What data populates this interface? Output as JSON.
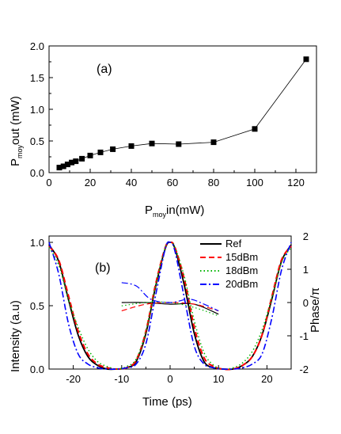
{
  "chart_data": [
    {
      "panel_label": "(a)",
      "type": "line",
      "xlabel": {
        "base": "P",
        "sub": "moy",
        "rest": "in(mW)"
      },
      "ylabel": {
        "base": "P",
        "sub": "moy",
        "rest": "out (mW)"
      },
      "xlim": [
        0,
        130
      ],
      "ylim": [
        0,
        2.0
      ],
      "xticks": [
        "0",
        "20",
        "40",
        "60",
        "80",
        "100",
        "120"
      ],
      "yticks": [
        "0.0",
        "0.5",
        "1.0",
        "1.5",
        "2.0"
      ],
      "series": [
        {
          "marker": "square",
          "x": [
            5,
            7,
            9,
            11,
            13,
            16,
            20,
            25,
            31,
            40,
            50,
            63,
            80,
            100,
            125
          ],
          "y": [
            0.08,
            0.1,
            0.13,
            0.16,
            0.18,
            0.22,
            0.27,
            0.32,
            0.37,
            0.42,
            0.46,
            0.45,
            0.48,
            0.69,
            1.79
          ]
        }
      ]
    },
    {
      "panel_label": "(b)",
      "type": "line",
      "xlabel": "Time (ps)",
      "ylabel": "Intensity (a.u)",
      "y2label": "Phase/π",
      "xlim": [
        -25,
        25
      ],
      "ylim": [
        0,
        1.05
      ],
      "y2lim": [
        -2,
        2
      ],
      "xticks": [
        "-20",
        "-10",
        "0",
        "10",
        "20"
      ],
      "yticks": [
        "0.0",
        "0.5",
        "1.0"
      ],
      "y2ticks": [
        "-2",
        "-1",
        "0",
        "1",
        "2"
      ],
      "legend": {
        "position": "top-right",
        "entries": [
          "Ref",
          "15dBm",
          "18dBm",
          "20dBm"
        ]
      },
      "series": [
        {
          "name": "Ref",
          "color": "#000000",
          "style": "solid",
          "x": [
            -25,
            -23,
            -21,
            -19,
            -17,
            -15,
            -13,
            -11,
            -9,
            -7,
            -5,
            -3,
            -1,
            0,
            1,
            3,
            5,
            7,
            9,
            11,
            13,
            15,
            17,
            19,
            21,
            23,
            25
          ],
          "intensity": [
            0.98,
            0.85,
            0.55,
            0.27,
            0.1,
            0.03,
            0.0,
            0.0,
            0.01,
            0.06,
            0.28,
            0.65,
            0.95,
            1.0,
            0.95,
            0.65,
            0.28,
            0.06,
            0.01,
            0.0,
            0.0,
            0.03,
            0.1,
            0.27,
            0.55,
            0.85,
            0.98
          ],
          "phase_x": [
            -10,
            -5,
            0,
            5,
            10
          ],
          "phase": [
            0.0,
            0.0,
            -0.05,
            -0.05,
            -0.35
          ]
        },
        {
          "name": "15dBm",
          "color": "#ff0000",
          "style": "dash",
          "x": [
            -25,
            -23,
            -21,
            -19,
            -17,
            -15,
            -13,
            -11,
            -9,
            -7,
            -5,
            -3,
            -1,
            0,
            1,
            3,
            5,
            7,
            9,
            11,
            13,
            15,
            17,
            19,
            21,
            23,
            25
          ],
          "intensity": [
            0.97,
            0.86,
            0.58,
            0.3,
            0.12,
            0.04,
            0.01,
            0.0,
            0.01,
            0.07,
            0.3,
            0.67,
            0.96,
            1.0,
            0.96,
            0.7,
            0.33,
            0.09,
            0.02,
            0.0,
            0.0,
            0.03,
            0.1,
            0.27,
            0.57,
            0.86,
            0.97
          ],
          "phase_x": [
            -10,
            -5,
            0,
            5,
            10
          ],
          "phase": [
            -0.25,
            -0.05,
            0.0,
            -0.05,
            -0.25
          ]
        },
        {
          "name": "18dBm",
          "color": "#00b400",
          "style": "dot",
          "x": [
            -25,
            -23,
            -21,
            -19,
            -17,
            -15,
            -13,
            -11,
            -9,
            -7,
            -5,
            -3,
            -1,
            0,
            1,
            3,
            5,
            7,
            9,
            11,
            13,
            15,
            17,
            19,
            21,
            23,
            25
          ],
          "intensity": [
            0.96,
            0.82,
            0.55,
            0.33,
            0.16,
            0.06,
            0.02,
            0.0,
            0.02,
            0.08,
            0.3,
            0.66,
            0.96,
            1.0,
            0.96,
            0.72,
            0.38,
            0.13,
            0.03,
            0.0,
            0.01,
            0.05,
            0.14,
            0.31,
            0.56,
            0.84,
            0.96
          ],
          "phase_x": [
            -10,
            -5,
            0,
            5,
            10
          ],
          "phase": [
            -0.1,
            0.0,
            0.0,
            -0.15,
            -0.4
          ]
        },
        {
          "name": "20dBm",
          "color": "#0000ff",
          "style": "dashdot",
          "x": [
            -25,
            -23,
            -21,
            -19,
            -17,
            -15,
            -13,
            -11,
            -9,
            -7,
            -5,
            -3,
            -1,
            0,
            1,
            3,
            5,
            7,
            9,
            11,
            13,
            15,
            17,
            19,
            21,
            23,
            25
          ],
          "intensity": [
            1.0,
            0.75,
            0.36,
            0.12,
            0.04,
            0.01,
            0.0,
            0.0,
            0.01,
            0.04,
            0.2,
            0.58,
            0.95,
            1.0,
            0.93,
            0.55,
            0.18,
            0.04,
            0.01,
            0.0,
            0.0,
            0.01,
            0.04,
            0.12,
            0.4,
            0.78,
            1.0
          ],
          "phase_x": [
            -10,
            -7,
            -4,
            0,
            4,
            7,
            10
          ],
          "phase": [
            0.6,
            0.5,
            0.1,
            0.0,
            0.1,
            -0.05,
            -0.25
          ]
        }
      ]
    }
  ]
}
